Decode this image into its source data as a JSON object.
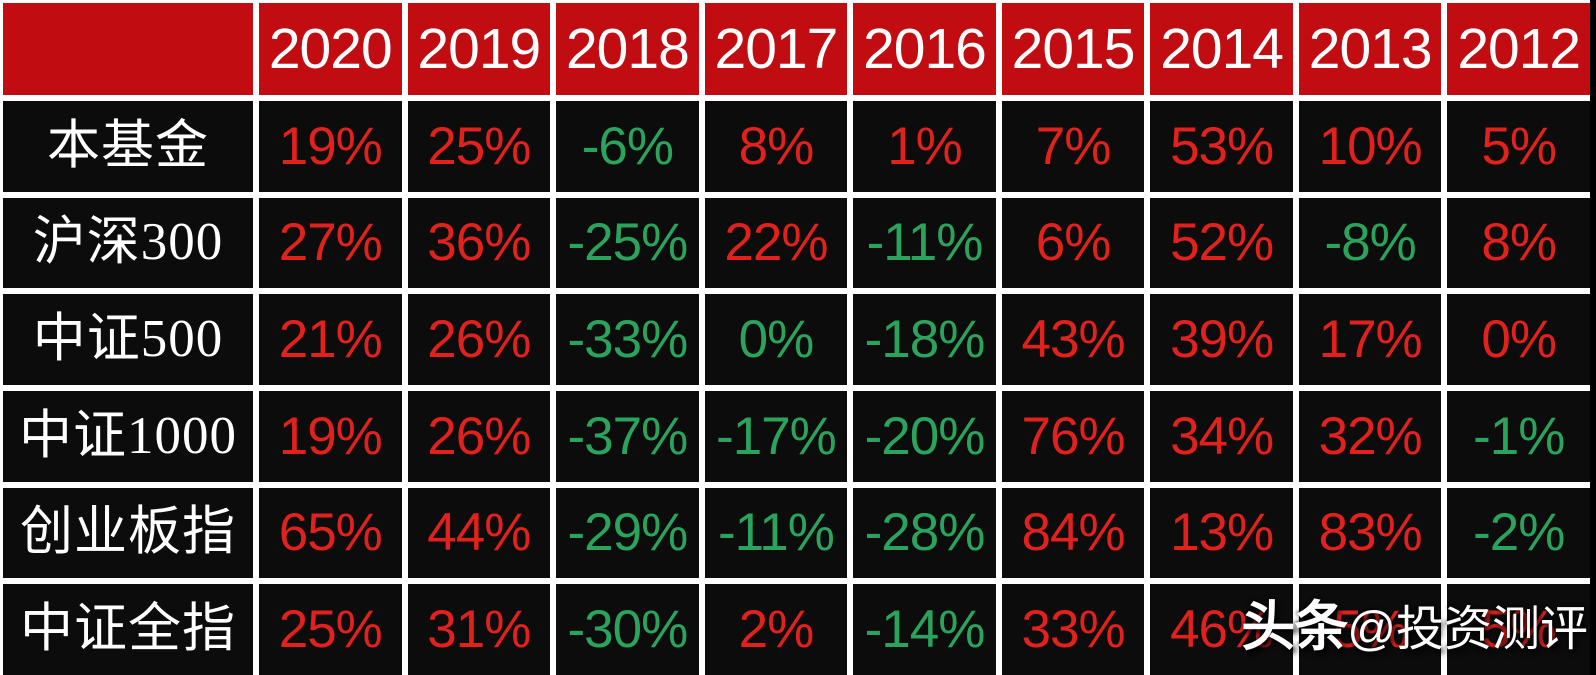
{
  "chart_data": {
    "type": "table",
    "title": "",
    "categories": [
      "2020",
      "2019",
      "2018",
      "2017",
      "2016",
      "2015",
      "2014",
      "2013",
      "2012"
    ],
    "series": [
      {
        "name": "本基金",
        "values": [
          19,
          25,
          -6,
          8,
          1,
          7,
          53,
          10,
          5
        ]
      },
      {
        "name": "沪深300",
        "values": [
          27,
          36,
          -25,
          22,
          -11,
          6,
          52,
          -8,
          8
        ]
      },
      {
        "name": "中证500",
        "values": [
          21,
          26,
          -33,
          0,
          -18,
          43,
          39,
          17,
          0
        ]
      },
      {
        "name": "中证1000",
        "values": [
          19,
          26,
          -37,
          -17,
          -20,
          76,
          34,
          32,
          -1
        ]
      },
      {
        "name": "创业板指",
        "values": [
          65,
          44,
          -29,
          -11,
          -28,
          84,
          13,
          83,
          -2
        ]
      },
      {
        "name": "中证全指",
        "values": [
          25,
          31,
          -30,
          2,
          -14,
          33,
          46,
          5,
          5
        ]
      }
    ],
    "legend_position": "none",
    "grid": "white-lines-between-cells"
  },
  "table": {
    "corner_label": "",
    "years": [
      "2020",
      "2019",
      "2018",
      "2017",
      "2016",
      "2015",
      "2014",
      "2013",
      "2012"
    ],
    "rows": [
      {
        "label": "本基金",
        "cells": [
          {
            "text": "19%",
            "color": "red"
          },
          {
            "text": "25%",
            "color": "red"
          },
          {
            "text": "-6%",
            "color": "green"
          },
          {
            "text": "8%",
            "color": "red"
          },
          {
            "text": "1%",
            "color": "red"
          },
          {
            "text": "7%",
            "color": "red"
          },
          {
            "text": "53%",
            "color": "red"
          },
          {
            "text": "10%",
            "color": "red"
          },
          {
            "text": "5%",
            "color": "red"
          }
        ]
      },
      {
        "label": "沪深300",
        "cells": [
          {
            "text": "27%",
            "color": "red"
          },
          {
            "text": "36%",
            "color": "red"
          },
          {
            "text": "-25%",
            "color": "green"
          },
          {
            "text": "22%",
            "color": "red"
          },
          {
            "text": "-11%",
            "color": "green"
          },
          {
            "text": "6%",
            "color": "red"
          },
          {
            "text": "52%",
            "color": "red"
          },
          {
            "text": "-8%",
            "color": "green"
          },
          {
            "text": "8%",
            "color": "red"
          }
        ]
      },
      {
        "label": "中证500",
        "cells": [
          {
            "text": "21%",
            "color": "red"
          },
          {
            "text": "26%",
            "color": "red"
          },
          {
            "text": "-33%",
            "color": "green"
          },
          {
            "text": "0%",
            "color": "green"
          },
          {
            "text": "-18%",
            "color": "green"
          },
          {
            "text": "43%",
            "color": "red"
          },
          {
            "text": "39%",
            "color": "red"
          },
          {
            "text": "17%",
            "color": "red"
          },
          {
            "text": "0%",
            "color": "red"
          }
        ]
      },
      {
        "label": "中证1000",
        "cells": [
          {
            "text": "19%",
            "color": "red"
          },
          {
            "text": "26%",
            "color": "red"
          },
          {
            "text": "-37%",
            "color": "green"
          },
          {
            "text": "-17%",
            "color": "green"
          },
          {
            "text": "-20%",
            "color": "green"
          },
          {
            "text": "76%",
            "color": "red"
          },
          {
            "text": "34%",
            "color": "red"
          },
          {
            "text": "32%",
            "color": "red"
          },
          {
            "text": "-1%",
            "color": "green"
          }
        ]
      },
      {
        "label": "创业板指",
        "cells": [
          {
            "text": "65%",
            "color": "red"
          },
          {
            "text": "44%",
            "color": "red"
          },
          {
            "text": "-29%",
            "color": "green"
          },
          {
            "text": "-11%",
            "color": "green"
          },
          {
            "text": "-28%",
            "color": "green"
          },
          {
            "text": "84%",
            "color": "red"
          },
          {
            "text": "13%",
            "color": "red"
          },
          {
            "text": "83%",
            "color": "red"
          },
          {
            "text": "-2%",
            "color": "green"
          }
        ]
      },
      {
        "label": "中证全指",
        "cells": [
          {
            "text": "25%",
            "color": "red"
          },
          {
            "text": "31%",
            "color": "red"
          },
          {
            "text": "-30%",
            "color": "green"
          },
          {
            "text": "2%",
            "color": "red"
          },
          {
            "text": "-14%",
            "color": "green"
          },
          {
            "text": "33%",
            "color": "red"
          },
          {
            "text": "46%",
            "color": "red"
          },
          {
            "text": "5%",
            "color": "red"
          },
          {
            "text": "5%",
            "color": "red"
          }
        ]
      }
    ]
  },
  "watermark": {
    "brand": "头条",
    "handle": "@投资测评"
  },
  "colors": {
    "header_bg": "#c10d11",
    "cell_bg": "#0c0c0c",
    "gridline": "#ffffff",
    "positive_red": "#e2211d",
    "negative_green": "#2aa45c",
    "header_text": "#ffffff",
    "label_text": "#ffffff"
  }
}
